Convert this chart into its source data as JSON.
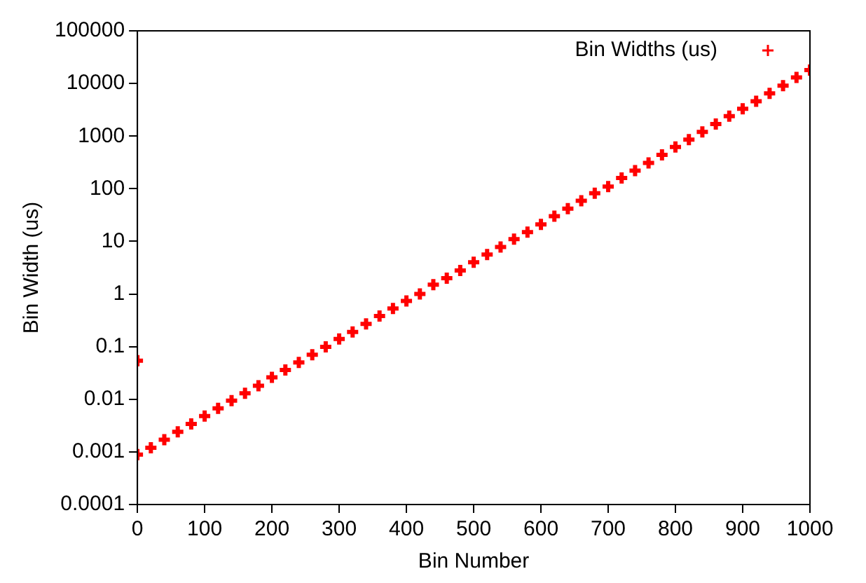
{
  "chart_data": {
    "type": "scatter",
    "xlabel": "Bin Number",
    "ylabel": "Bin Width (us)",
    "log": "y",
    "marker": "cross",
    "grid": false,
    "legend": "top right",
    "xlim": [
      0,
      1000
    ],
    "xticks": [
      0,
      100,
      200,
      300,
      400,
      500,
      600,
      700,
      800,
      900,
      1000
    ],
    "ylim": [
      0.0001,
      100000
    ],
    "yticks": [
      0.0001,
      0.001,
      0.01,
      0.1,
      1,
      10,
      100,
      1000,
      10000,
      100000
    ],
    "series": [
      {
        "name": "Bin Widths (us)",
        "color": "#ff0000",
        "x": [
          0,
          0,
          20,
          40,
          60,
          80,
          100,
          120,
          140,
          160,
          180,
          200,
          220,
          240,
          260,
          280,
          300,
          320,
          340,
          360,
          380,
          400,
          420,
          440,
          460,
          480,
          500,
          520,
          540,
          560,
          580,
          600,
          620,
          640,
          660,
          680,
          700,
          720,
          740,
          760,
          780,
          800,
          820,
          840,
          860,
          880,
          900,
          920,
          940,
          960,
          980,
          1000
        ],
        "values": [
          0.054,
          0.00089,
          0.0012,
          0.0017,
          0.0024,
          0.0034,
          0.0048,
          0.0067,
          0.0094,
          0.013,
          0.018,
          0.026,
          0.036,
          0.05,
          0.07,
          0.099,
          0.14,
          0.19,
          0.27,
          0.38,
          0.53,
          0.74,
          1.0,
          1.5,
          2.0,
          2.8,
          4.0,
          5.6,
          7.8,
          11,
          15,
          21,
          30,
          42,
          59,
          82,
          110,
          160,
          220,
          310,
          440,
          620,
          860,
          1200,
          1700,
          2400,
          3300,
          4600,
          6500,
          9100,
          13000,
          18000
        ]
      }
    ]
  }
}
